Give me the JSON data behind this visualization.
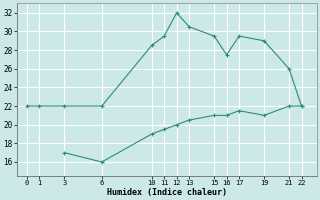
{
  "xlabel": "Humidex (Indice chaleur)",
  "line1_x": [
    0,
    1,
    3,
    6,
    10,
    11,
    12,
    13,
    15,
    16,
    17,
    19,
    21,
    22
  ],
  "line1_y": [
    22,
    22,
    22,
    22,
    28.5,
    29.5,
    32,
    30.5,
    29.5,
    27.5,
    29.5,
    29,
    26,
    22
  ],
  "line2_x": [
    3,
    6,
    10,
    11,
    12,
    13,
    15,
    16,
    17,
    19,
    21,
    22
  ],
  "line2_y": [
    17,
    16,
    19,
    19.5,
    20,
    20.5,
    21,
    21,
    21.5,
    21,
    22,
    22
  ],
  "line_color": "#2e8b77",
  "bg_color": "#cce8e8",
  "grid_color": "#ffffff",
  "ylim": [
    14.5,
    33
  ],
  "xlim": [
    -0.8,
    23.2
  ],
  "yticks": [
    16,
    18,
    20,
    22,
    24,
    26,
    28,
    30,
    32
  ],
  "xticks": [
    0,
    1,
    3,
    6,
    10,
    11,
    12,
    13,
    15,
    16,
    17,
    19,
    21,
    22
  ]
}
